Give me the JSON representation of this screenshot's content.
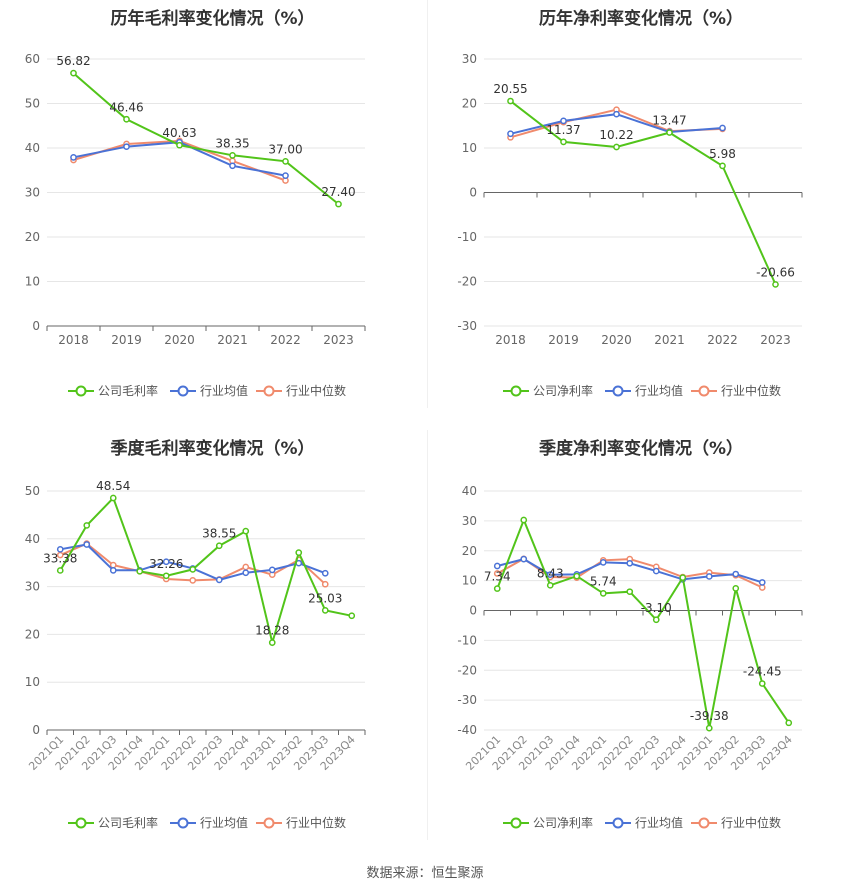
{
  "source": "数据来源：恒生聚源",
  "chart_data": [
    {
      "type": "line",
      "title": "历年毛利率变化情况（%）",
      "x": [
        "2018",
        "2019",
        "2020",
        "2021",
        "2022",
        "2023"
      ],
      "ylim": [
        0,
        60
      ],
      "yticks": [
        "0",
        "10",
        "20",
        "30",
        "40",
        "50",
        "60"
      ],
      "grid": true,
      "legend_position": "bottom",
      "series": [
        {
          "name": "公司毛利率",
          "color": "#52c41a",
          "values": [
            56.82,
            46.46,
            40.63,
            38.35,
            37.0,
            27.4
          ],
          "labels": [
            "56.82",
            "46.46",
            "40.63",
            "38.35",
            "37.00",
            "27.40"
          ]
        },
        {
          "name": "行业均值",
          "color": "#4a72d6",
          "values": [
            37.9,
            40.3,
            41.3,
            36.0,
            33.8,
            null
          ]
        },
        {
          "name": "行业中位数",
          "color": "#f08a6c",
          "values": [
            37.3,
            40.9,
            41.6,
            37.1,
            32.7,
            null
          ]
        }
      ]
    },
    {
      "type": "line",
      "title": "历年净利率变化情况（%）",
      "x": [
        "2018",
        "2019",
        "2020",
        "2021",
        "2022",
        "2023"
      ],
      "ylim": [
        -30,
        30
      ],
      "yticks": [
        "-30",
        "-20",
        "-10",
        "0",
        "10",
        "20",
        "30"
      ],
      "grid": true,
      "legend_position": "bottom",
      "series": [
        {
          "name": "公司净利率",
          "color": "#52c41a",
          "values": [
            20.55,
            11.37,
            10.22,
            13.47,
            5.98,
            -20.66
          ],
          "labels": [
            "20.55",
            "11.37",
            "10.22",
            "13.47",
            "5.98",
            "-20.66"
          ]
        },
        {
          "name": "行业均值",
          "color": "#4a72d6",
          "values": [
            13.2,
            16.1,
            17.6,
            13.6,
            14.5,
            null
          ]
        },
        {
          "name": "行业中位数",
          "color": "#f08a6c",
          "values": [
            12.4,
            15.8,
            18.6,
            13.8,
            14.3,
            null
          ]
        }
      ]
    },
    {
      "type": "line",
      "title": "季度毛利率变化情况（%）",
      "x": [
        "2021Q1",
        "2021Q2",
        "2021Q3",
        "2021Q4",
        "2022Q1",
        "2022Q2",
        "2022Q3",
        "2022Q4",
        "2023Q1",
        "2023Q2",
        "2023Q3",
        "2023Q4"
      ],
      "ylim": [
        0,
        50
      ],
      "yticks": [
        "0",
        "10",
        "20",
        "30",
        "40",
        "50"
      ],
      "grid": true,
      "legend_position": "bottom",
      "series": [
        {
          "name": "公司毛利率",
          "color": "#52c41a",
          "values": [
            33.38,
            42.8,
            48.54,
            33.2,
            32.26,
            33.6,
            38.55,
            41.6,
            18.28,
            37.1,
            25.03,
            23.9
          ],
          "labels": [
            "33.38",
            "",
            "48.54",
            "",
            "32.26",
            "",
            "38.55",
            "",
            "18.28",
            "",
            "25.03",
            ""
          ]
        },
        {
          "name": "行业均值",
          "color": "#4a72d6",
          "values": [
            37.8,
            38.8,
            33.4,
            33.4,
            35.2,
            33.8,
            31.4,
            32.9,
            33.5,
            34.9,
            32.8,
            null
          ]
        },
        {
          "name": "行业中位数",
          "color": "#f08a6c",
          "values": [
            36.6,
            39.0,
            34.5,
            33.2,
            31.6,
            31.3,
            31.5,
            34.1,
            32.5,
            35.6,
            30.5,
            null
          ]
        }
      ]
    },
    {
      "type": "line",
      "title": "季度净利率变化情况（%）",
      "x": [
        "2021Q1",
        "2021Q2",
        "2021Q3",
        "2021Q4",
        "2022Q1",
        "2022Q2",
        "2022Q3",
        "2022Q4",
        "2023Q1",
        "2023Q2",
        "2023Q3",
        "2023Q4"
      ],
      "ylim": [
        -40,
        40
      ],
      "yticks": [
        "-40",
        "-30",
        "-20",
        "-10",
        "0",
        "10",
        "20",
        "30",
        "40"
      ],
      "grid": true,
      "legend_position": "bottom",
      "series": [
        {
          "name": "公司净利率",
          "color": "#52c41a",
          "values": [
            7.34,
            30.3,
            8.43,
            11.5,
            5.74,
            6.3,
            -3.1,
            11.0,
            -39.38,
            7.4,
            -24.45,
            -37.6
          ],
          "labels": [
            "7.34",
            "",
            "8.43",
            "",
            "5.74",
            "",
            "-3.10",
            "",
            "-39.38",
            "",
            "-24.45",
            ""
          ]
        },
        {
          "name": "行业均值",
          "color": "#4a72d6",
          "values": [
            14.9,
            17.2,
            12.0,
            12.1,
            16.1,
            15.8,
            13.2,
            10.4,
            11.4,
            12.2,
            9.4,
            null
          ]
        },
        {
          "name": "行业中位数",
          "color": "#f08a6c",
          "values": [
            12.4,
            17.3,
            11.2,
            11.0,
            16.8,
            17.2,
            14.6,
            11.2,
            12.7,
            11.8,
            7.7,
            null
          ]
        }
      ]
    }
  ]
}
